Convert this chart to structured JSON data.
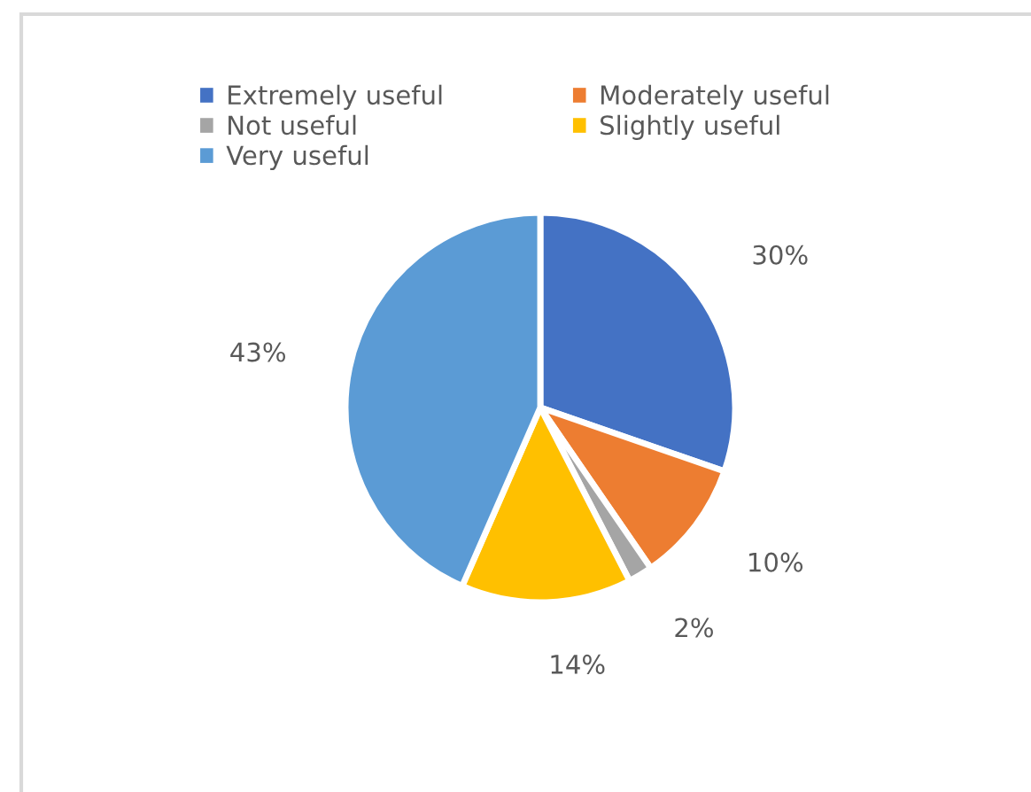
{
  "chart_data": {
    "type": "pie",
    "categories": [
      "Extremely useful",
      "Moderately useful",
      "Not useful",
      "Slightly useful",
      "Very useful"
    ],
    "values": [
      30,
      10,
      2,
      14,
      43
    ],
    "colors": [
      "#4472c4",
      "#ed7d31",
      "#a5a5a5",
      "#ffc000",
      "#5b9bd5"
    ],
    "value_labels": [
      "30%",
      "10%",
      "2%",
      "14%",
      "43%"
    ],
    "legend": "top"
  }
}
